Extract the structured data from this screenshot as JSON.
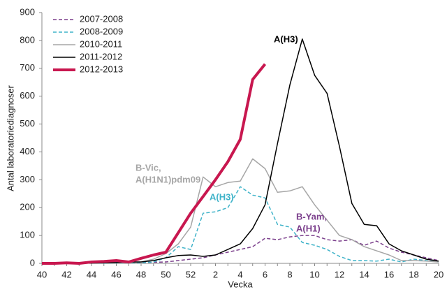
{
  "chart_data": {
    "type": "line",
    "ylabel": "Antal laboratoriediagnoser",
    "xlabel": "Vecka",
    "categories": [
      40,
      null,
      42,
      null,
      44,
      null,
      46,
      null,
      48,
      null,
      50,
      null,
      52,
      null,
      2,
      null,
      4,
      null,
      6,
      null,
      8,
      null,
      10,
      null,
      12,
      null,
      14,
      null,
      16,
      null,
      18,
      null,
      20
    ],
    "ylim": [
      0,
      900
    ],
    "yticks": [
      0,
      100,
      200,
      300,
      400,
      500,
      600,
      700,
      800,
      900
    ],
    "legend": "upper left",
    "series": [
      {
        "name": "2007-2008",
        "color": "#7b3f8c",
        "style": "dashed",
        "linewidth": 1.5,
        "values": [
          0,
          0,
          0,
          0,
          2,
          2,
          3,
          3,
          3,
          4,
          5,
          10,
          15,
          20,
          30,
          40,
          50,
          60,
          90,
          85,
          95,
          100,
          100,
          85,
          80,
          85,
          65,
          80,
          55,
          40,
          30,
          20,
          10
        ]
      },
      {
        "name": "2008-2009",
        "color": "#3fb3c9",
        "style": "dashed",
        "linewidth": 1.5,
        "values": [
          0,
          0,
          0,
          0,
          1,
          1,
          2,
          2,
          2,
          5,
          20,
          60,
          50,
          180,
          185,
          200,
          275,
          245,
          235,
          140,
          130,
          75,
          65,
          50,
          25,
          10,
          10,
          8,
          15,
          5,
          15,
          10,
          5
        ]
      },
      {
        "name": "2010-2011",
        "color": "#a6a6a6",
        "style": "solid",
        "linewidth": 1.5,
        "values": [
          0,
          0,
          0,
          0,
          1,
          2,
          3,
          3,
          5,
          15,
          35,
          70,
          130,
          310,
          275,
          290,
          295,
          375,
          340,
          255,
          260,
          275,
          210,
          155,
          100,
          85,
          60,
          45,
          30,
          10,
          10,
          8,
          5
        ]
      },
      {
        "name": "2011-2012",
        "color": "#000000",
        "style": "solid",
        "linewidth": 1.5,
        "values": [
          0,
          0,
          0,
          0,
          1,
          2,
          3,
          5,
          5,
          10,
          20,
          28,
          30,
          25,
          30,
          50,
          70,
          125,
          210,
          430,
          640,
          805,
          675,
          610,
          420,
          215,
          140,
          135,
          70,
          45,
          30,
          15,
          8
        ]
      },
      {
        "name": "2012-2013",
        "color": "#c8174f",
        "style": "solid",
        "linewidth": 4,
        "values": [
          0,
          0,
          2,
          0,
          5,
          7,
          10,
          5,
          18,
          30,
          40,
          110,
          180,
          240,
          300,
          365,
          445,
          660,
          715,
          null,
          null,
          null,
          null,
          null,
          null,
          null,
          null,
          null,
          null,
          null,
          null,
          null,
          null
        ]
      }
    ],
    "annotations": [
      {
        "lines": [
          "A(H3)"
        ],
        "color": "#000000"
      },
      {
        "lines": [
          "B-Vic,",
          "A(H1N1)pdm09"
        ],
        "color": "#a6a6a6"
      },
      {
        "lines": [
          "A(H3)"
        ],
        "color": "#3fb3c9"
      },
      {
        "lines": [
          "B-Yam,",
          "A(H1)"
        ],
        "color": "#7b3f8c"
      }
    ]
  }
}
